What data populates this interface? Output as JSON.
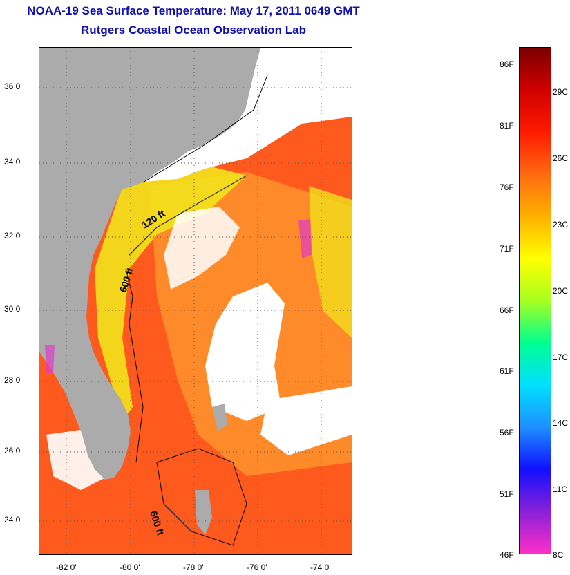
{
  "title": {
    "line1": "NOAA-19 Sea Surface Temperature:  May 17, 2011 0649 GMT",
    "line2": "Rutgers Coastal Ocean Observation Lab"
  },
  "map": {
    "lat_labels": [
      "36 0'",
      "34 0'",
      "32 0'",
      "30 0'",
      "28 0'",
      "26 0'",
      "24 0'"
    ],
    "lon_labels": [
      "-82 0'",
      "-80 0'",
      "-78 0'",
      "-76 0'",
      "-74 0'"
    ],
    "contour_labels": [
      "120 ft",
      "600 ft",
      "600 ft"
    ],
    "colors": {
      "land": "#ababab",
      "cloud": "#ffffff",
      "warm_water": "#ff5a1e",
      "orange_water": "#ff8a2a",
      "yellow_water": "#f2e21c",
      "cool_speckle": "#e03ac8"
    }
  },
  "colorbar": {
    "fahrenheit_labels": [
      "86F",
      "81F",
      "76F",
      "71F",
      "66F",
      "61F",
      "56F",
      "51F",
      "46F"
    ],
    "celsius_labels": [
      "29C",
      "26C",
      "23C",
      "20C",
      "17C",
      "14C",
      "11C",
      "8C"
    ],
    "gradient_stops": [
      "#ff30c8",
      "#8a20d8",
      "#1010ff",
      "#1e90ff",
      "#00e0ff",
      "#00ff90",
      "#a8ff20",
      "#ffff00",
      "#ffb000",
      "#ff6a10",
      "#ff1a00",
      "#d00000",
      "#7a0000"
    ]
  }
}
